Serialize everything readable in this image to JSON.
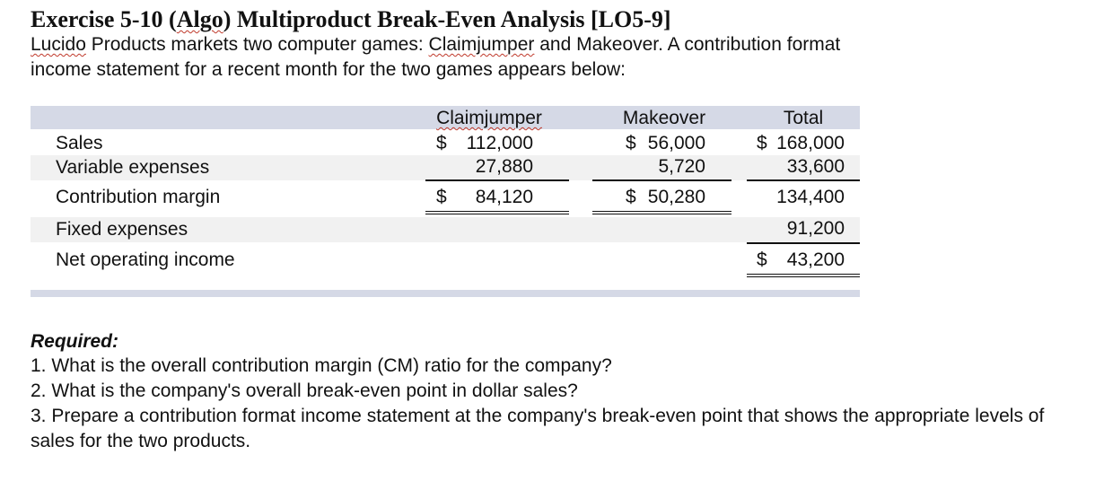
{
  "exercise": {
    "title_prefix": "Exercise 5-10 (",
    "title_algo": "Algo",
    "title_suffix": ") Multiproduct Break-Even Analysis [LO5-9]",
    "company": "Lucido",
    "intro_part1": " Products markets two computer games: ",
    "game1_name": "Claimjumper",
    "intro_part2": " and Makeover. A contribution format",
    "intro_line2": "income statement for a recent month for the two games appears below:"
  },
  "table": {
    "headers": {
      "claimjumper": "Claimjumper",
      "makeover": "Makeover",
      "total": "Total"
    },
    "sales": {
      "label": "Sales",
      "claimjumper": "112,000",
      "makeover": "56,000",
      "total": "168,000"
    },
    "variable_expenses": {
      "label": "Variable expenses",
      "claimjumper": "27,880",
      "makeover": "5,720",
      "total": "33,600"
    },
    "contribution_margin": {
      "label": "Contribution margin",
      "claimjumper": "84,120",
      "makeover": "50,280",
      "total": "134,400"
    },
    "fixed_expenses": {
      "label": "Fixed expenses",
      "total": "91,200"
    },
    "net_operating_income": {
      "label": "Net operating income",
      "total": "43,200"
    },
    "currency_symbol": "$"
  },
  "required": {
    "heading": "Required:",
    "items": [
      "1. What is the overall contribution margin (CM) ratio for the company?",
      "2. What is the company's overall break-even point in dollar sales?",
      "3. Prepare a contribution format income statement at the company's break-even point that shows the appropriate levels of sales for the two products."
    ]
  }
}
